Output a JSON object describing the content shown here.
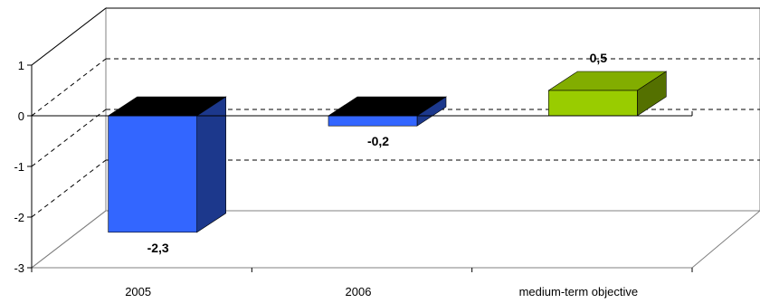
{
  "chart_data": {
    "type": "bar",
    "title": "",
    "xlabel": "",
    "ylabel": "",
    "categories": [
      "2005",
      "2006",
      "medium-term objective"
    ],
    "values": [
      -2.3,
      -0.2,
      0.5
    ],
    "data_labels": [
      "-2,3",
      "-0,2",
      "0,5"
    ],
    "bar_colors": [
      "#3366ff",
      "#3366ff",
      "#99cc00"
    ],
    "ylim": [
      -3,
      1
    ],
    "yticks": [
      -3,
      -2,
      -1,
      0,
      1
    ],
    "ytick_labels": [
      "-3",
      "-2",
      "-1",
      "0",
      "1"
    ],
    "gridlines": "dashed",
    "legend": "none",
    "style": "3d"
  }
}
